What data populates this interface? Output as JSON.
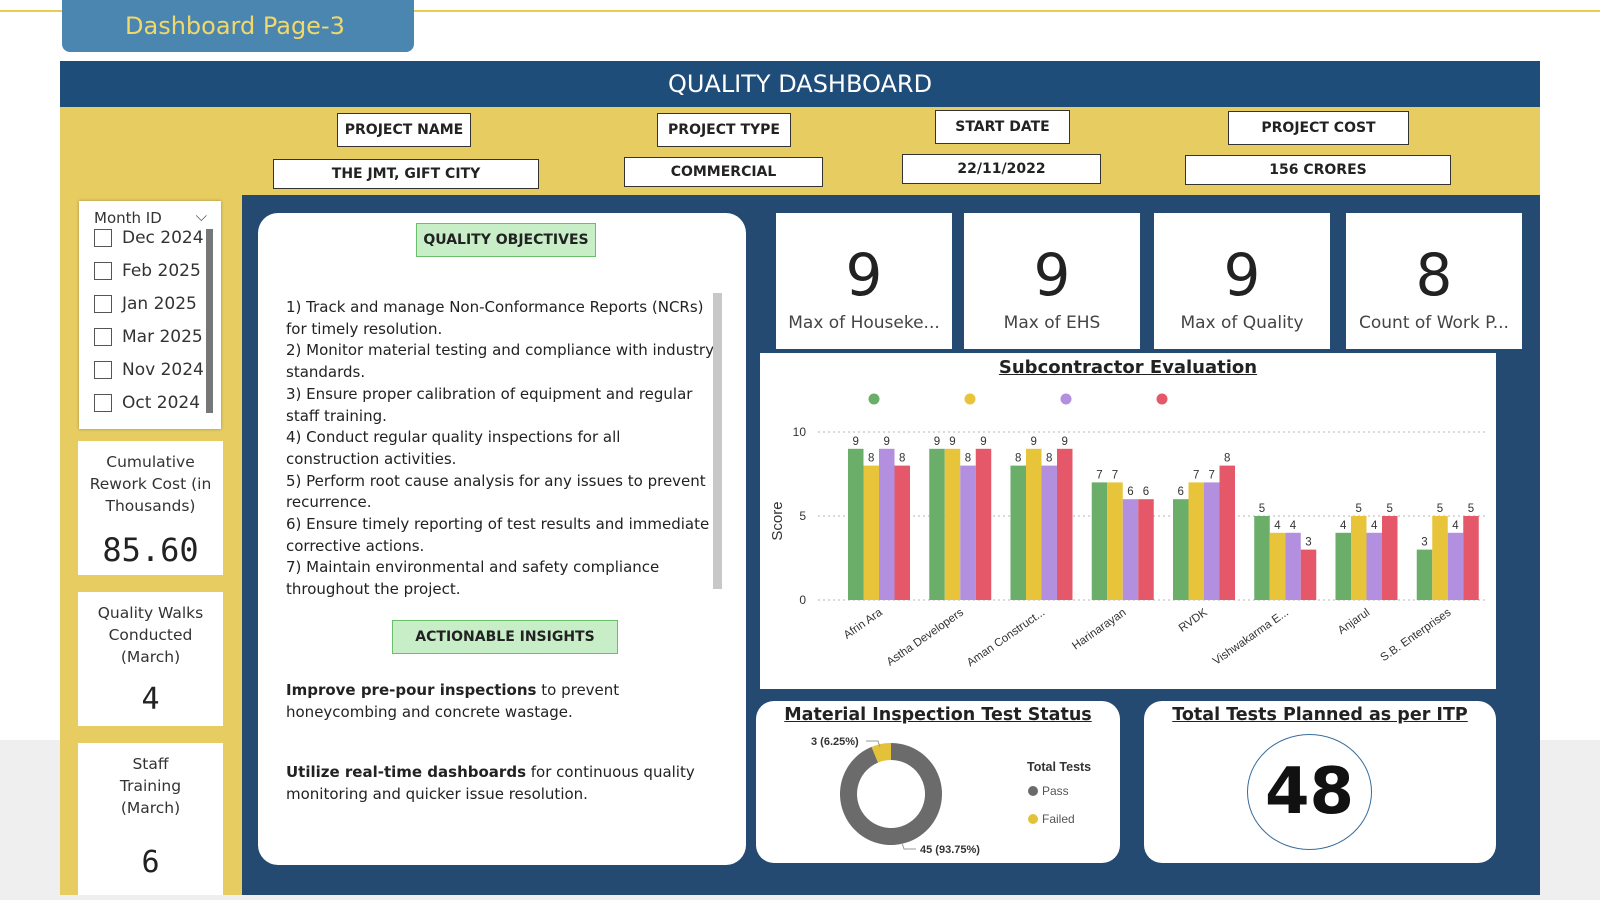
{
  "page_tab": "Dashboard Page-3",
  "title": "QUALITY DASHBOARD",
  "header": {
    "project_name_label": "PROJECT NAME",
    "project_name_value": "THE JMT, GIFT CITY",
    "project_type_label": "PROJECT TYPE",
    "project_type_value": "COMMERCIAL",
    "start_date_label": "START DATE",
    "start_date_value": "22/11/2022",
    "project_cost_label": "PROJECT COST",
    "project_cost_value": "156 CRORES"
  },
  "slicer": {
    "title": "Month ID",
    "items": [
      "Dec 2024",
      "Feb 2025",
      "Jan 2025",
      "Mar 2025",
      "Nov 2024",
      "Oct 2024"
    ]
  },
  "side_kpis": [
    {
      "label": "Cumulative Rework Cost (in Thousands)",
      "value": "85.60"
    },
    {
      "label": "Quality Walks Conducted (March)",
      "value": "4"
    },
    {
      "label": "Staff Training (March)",
      "value": "6"
    }
  ],
  "quality_objectives": {
    "title": "QUALITY OBJECTIVES",
    "items": [
      "1) Track and manage Non-Conformance Reports (NCRs) for timely resolution.",
      "2) Monitor material testing and compliance with industry standards.",
      "3) Ensure proper calibration of equipment and regular staff training.",
      "4) Conduct regular quality inspections for all construction activities.",
      "5) Perform root cause analysis for any issues to prevent recurrence.",
      "6) Ensure timely reporting of test results and immediate corrective actions.",
      "7) Maintain environmental and safety compliance throughout the project."
    ]
  },
  "actionable_insights": {
    "title": "ACTIONABLE INSIGHTS",
    "items": [
      {
        "bold": "Improve pre-pour inspections",
        "rest": " to prevent honeycombing and concrete wastage."
      },
      {
        "bold": "Utilize real-time dashboards",
        "rest": " for continuous quality monitoring and quicker issue resolution."
      }
    ]
  },
  "kpi_cards": [
    {
      "value": "9",
      "label": "Max of Houseke..."
    },
    {
      "value": "9",
      "label": "Max of EHS"
    },
    {
      "value": "9",
      "label": "Max of Quality"
    },
    {
      "value": "8",
      "label": "Count of Work P..."
    }
  ],
  "chart_data": {
    "type": "bar",
    "title": "Subcontractor Evaluation",
    "ylabel": "Score",
    "xlabel": "",
    "ylim": [
      0,
      10
    ],
    "yticks": [
      0,
      5,
      10
    ],
    "grid": true,
    "legend": "top (colored dots, no labels)",
    "categories": [
      "Afrin Ara",
      "Astha Developers",
      "Aman Construct...",
      "Harinarayan",
      "RVDK",
      "Vishwakarma E...",
      "Anjarul",
      "S.B. Enterprises"
    ],
    "series": [
      {
        "color": "#6aae6a",
        "values": [
          9,
          9,
          8,
          7,
          6,
          5,
          4,
          3
        ]
      },
      {
        "color": "#e8c43a",
        "values": [
          8,
          9,
          9,
          7,
          7,
          4,
          5,
          5
        ]
      },
      {
        "color": "#b38fe0",
        "values": [
          9,
          8,
          8,
          6,
          7,
          4,
          4,
          4
        ]
      },
      {
        "color": "#e4586a",
        "values": [
          8,
          9,
          9,
          6,
          8,
          3,
          5,
          5
        ]
      }
    ]
  },
  "material_inspection": {
    "title": "Material Inspection Test Status",
    "legend_title": "Total Tests",
    "slices": [
      {
        "label": "Pass",
        "value": 45,
        "display": "45 (93.75%)",
        "color": "#6b6b6b"
      },
      {
        "label": "Failed",
        "value": 3,
        "display": "3 (6.25%)",
        "color": "#e3c23a"
      }
    ]
  },
  "total_tests": {
    "title": "Total Tests Planned as per ITP",
    "value": "48"
  }
}
